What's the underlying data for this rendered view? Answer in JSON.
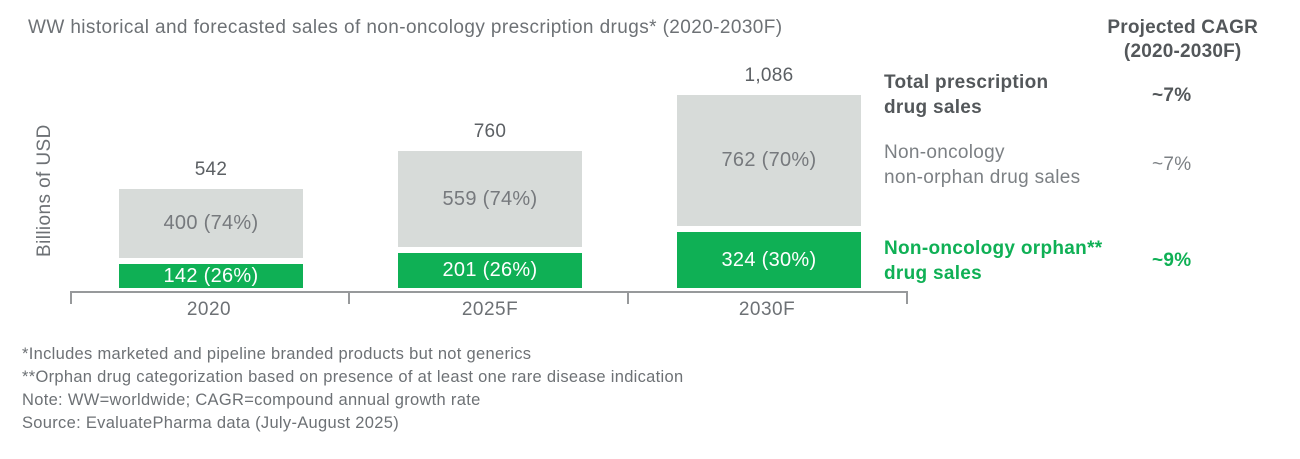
{
  "title": "WW historical and forecasted sales of non-oncology prescription drugs* (2020-2030F)",
  "chart_data": {
    "type": "bar",
    "stacked": true,
    "title": "WW historical and forecasted sales of non-oncology prescription drugs* (2020-2030F)",
    "ylabel": "Billions of USD",
    "xlabel": "",
    "grid": false,
    "categories": [
      "2020",
      "2025F",
      "2030F"
    ],
    "series": [
      {
        "name": "Non-oncology non-orphan drug sales",
        "values": [
          400,
          559,
          762
        ],
        "labels": [
          "400 (74%)",
          "559 (74%)",
          "762 (70%)"
        ],
        "color": "#d7dbd9",
        "text_color": "#76797d"
      },
      {
        "name": "Non-oncology orphan** drug sales",
        "values": [
          142,
          201,
          324
        ],
        "labels": [
          "142 (26%)",
          "201 (26%)",
          "324 (30%)"
        ],
        "color": "#0fb055",
        "text_color": "#ffffff"
      }
    ],
    "totals": [
      542,
      760,
      1086
    ],
    "total_labels": [
      "542",
      "760",
      "1,086"
    ],
    "accent_green": "#0fb055",
    "cagr": {
      "header": "Projected CAGR\n(2020-2030F)",
      "rows": [
        {
          "label": "Total prescription\ndrug sales",
          "value": "~7%",
          "style": "bold-dark"
        },
        {
          "label": "Non-oncology\nnon-orphan drug sales",
          "value": "~7%",
          "style": "regular-gray"
        },
        {
          "label": "Non-oncology orphan**\ndrug sales",
          "value": "~9%",
          "style": "bold-green"
        }
      ]
    },
    "footnotes": [
      "*Includes marketed and pipeline branded products but not generics",
      "**Orphan drug categorization based on presence of at least one rare disease indication",
      "Note: WW=worldwide; CAGR=compound annual growth rate",
      "Source: EvaluatePharma data (July-August 2025)"
    ]
  }
}
